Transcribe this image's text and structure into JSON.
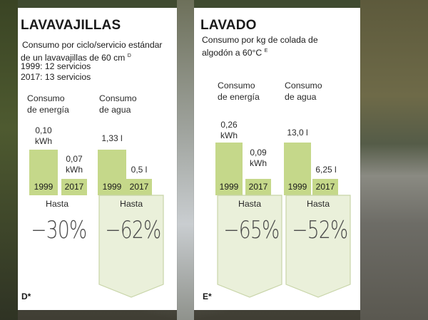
{
  "panels": [
    {
      "title": "LAVAVAJILLAS",
      "description": [
        "Consumo por ciclo/servicio estándar",
        "de un lavavajillas de 60 cm",
        "1999: 12 servicios",
        "2017: 13 servicios"
      ],
      "description_sup": "D",
      "footnote": "D*",
      "energy": {
        "label": [
          "Consumo",
          "de energía"
        ],
        "v1999": "0,10",
        "v1999_unit": "kWh",
        "v2017": "0,07",
        "v2017_unit": "kWh",
        "y1999": "1999",
        "y2017": "2017",
        "hasta": "Hasta",
        "pct": "−30%"
      },
      "water": {
        "label": [
          "Consumo",
          "de agua"
        ],
        "v1999": "1,33 l",
        "v2017": "0,5 l",
        "y1999": "1999",
        "y2017": "2017",
        "hasta": "Hasta",
        "pct": "−62%"
      }
    },
    {
      "title": "LAVADO",
      "description": [
        "Consumo por kg de colada de",
        "algodón a 60°C"
      ],
      "description_sup": "E",
      "footnote": "E*",
      "energy": {
        "label": [
          "Consumo",
          "de energía"
        ],
        "v1999": "0,26",
        "v1999_unit": "kWh",
        "v2017": "0,09",
        "v2017_unit": "kWh",
        "y1999": "1999",
        "y2017": "2017",
        "hasta": "Hasta",
        "pct": "−65%"
      },
      "water": {
        "label": [
          "Consumo",
          "de agua"
        ],
        "v1999": "13,0 l",
        "v2017": "6,25 l",
        "y1999": "1999",
        "y2017": "2017",
        "hasta": "Hasta",
        "pct": "−52%"
      }
    }
  ],
  "colors": {
    "bar": "#c5d88a",
    "shield_fill": "#eaf0da",
    "shield_stroke": "#c8d4a8"
  },
  "chart_data": [
    {
      "type": "bar",
      "title": "LAVAVAJILLAS",
      "categories": [
        "1999",
        "2017"
      ],
      "series": [
        {
          "name": "Consumo de energía",
          "values": [
            0.1,
            0.07
          ],
          "unit": "kWh"
        },
        {
          "name": "Consumo de agua",
          "values": [
            1.33,
            0.5
          ],
          "unit": "l"
        }
      ]
    },
    {
      "type": "bar",
      "title": "LAVADO",
      "categories": [
        "1999",
        "2017"
      ],
      "series": [
        {
          "name": "Consumo de energía",
          "values": [
            0.26,
            0.09
          ],
          "unit": "kWh"
        },
        {
          "name": "Consumo de agua",
          "values": [
            13.0,
            6.25
          ],
          "unit": "l"
        }
      ]
    }
  ]
}
